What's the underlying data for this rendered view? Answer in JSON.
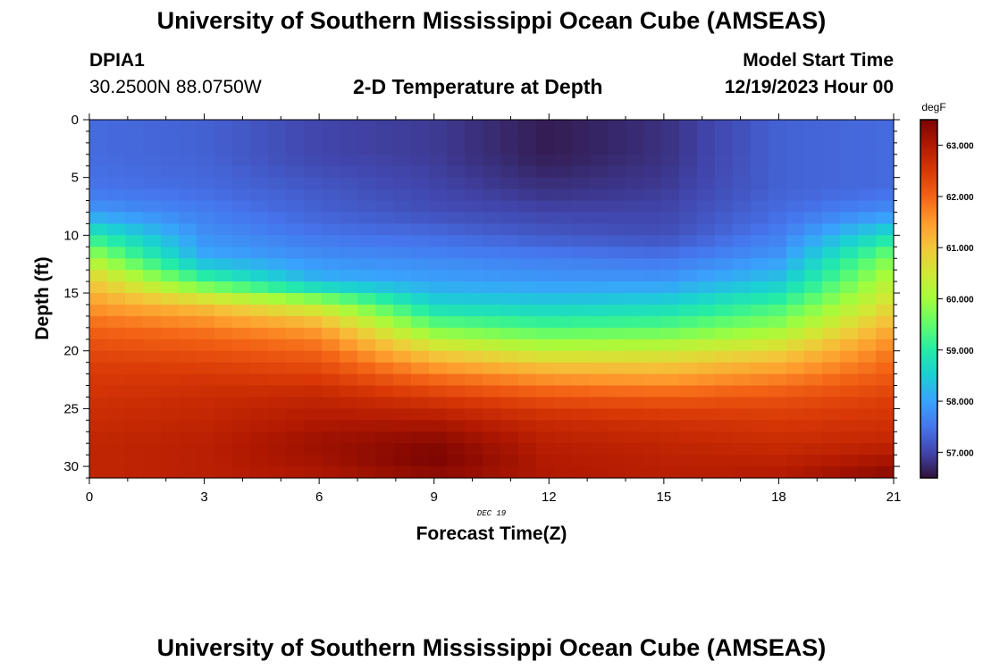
{
  "header": {
    "title": "University of Southern Mississippi Ocean Cube (AMSEAS)",
    "station_id": "DPIA1",
    "coordinates": "30.2500N  88.0750W",
    "plot_title": "2-D Temperature at Depth",
    "model_start_label": "Model Start Time",
    "model_start_value": "12/19/2023 Hour 00"
  },
  "footer": {
    "title": "University of Southern Mississippi Ocean Cube (AMSEAS)"
  },
  "chart_data": {
    "type": "heatmap",
    "title": "2-D Temperature at Depth",
    "xlabel": "Forecast Time(Z)",
    "ylabel": "Depth (ft)",
    "date_label": "DEC 19",
    "xlim": [
      0,
      21
    ],
    "ylim": [
      0,
      31
    ],
    "x_ticks": [
      0,
      3,
      6,
      9,
      12,
      15,
      18,
      21
    ],
    "y_ticks": [
      0,
      5,
      10,
      15,
      20,
      25,
      30
    ],
    "colorbar": {
      "units": "degF",
      "range": [
        56.5,
        63.5
      ],
      "ticks": [
        {
          "value": 57.0,
          "label": "57.000"
        },
        {
          "value": 58.0,
          "label": "58.000"
        },
        {
          "value": 59.0,
          "label": "59.000"
        },
        {
          "value": 60.0,
          "label": "60.000"
        },
        {
          "value": 61.0,
          "label": "61.000"
        },
        {
          "value": 62.0,
          "label": "62.000"
        },
        {
          "value": 63.0,
          "label": "63.000"
        }
      ],
      "colors": [
        "#30123b",
        "#4145ab",
        "#4675ed",
        "#39a2fc",
        "#1bcfd4",
        "#24eca6",
        "#61fc6c",
        "#a4fc3b",
        "#d1e834",
        "#f3c63a",
        "#fe9b2d",
        "#f36315",
        "#d93806",
        "#b11901",
        "#7a0402"
      ]
    },
    "grid": {
      "time_steps": [
        0,
        3,
        6,
        9,
        12,
        15,
        18,
        21
      ],
      "depths_ft": [
        0,
        3,
        6,
        8,
        10,
        12,
        14,
        16,
        18,
        20,
        22,
        24,
        26,
        28,
        30,
        31
      ],
      "values_degF": [
        [
          57.4,
          57.3,
          57.0,
          56.9,
          56.6,
          56.8,
          57.3,
          57.4
        ],
        [
          57.4,
          57.3,
          57.0,
          56.9,
          56.6,
          56.8,
          57.3,
          57.4
        ],
        [
          57.5,
          57.4,
          57.2,
          57.0,
          56.8,
          56.9,
          57.3,
          57.4
        ],
        [
          57.9,
          57.6,
          57.3,
          57.1,
          57.0,
          57.0,
          57.4,
          57.8
        ],
        [
          59.0,
          57.8,
          57.5,
          57.4,
          57.2,
          57.1,
          57.6,
          58.8
        ],
        [
          60.1,
          58.1,
          57.8,
          57.7,
          57.6,
          57.5,
          57.9,
          59.8
        ],
        [
          61.0,
          59.3,
          58.2,
          58.0,
          57.9,
          57.9,
          58.4,
          60.3
        ],
        [
          61.5,
          61.0,
          60.2,
          58.6,
          58.5,
          58.6,
          59.2,
          60.7
        ],
        [
          62.0,
          61.8,
          61.4,
          59.6,
          59.3,
          59.4,
          59.9,
          61.3
        ],
        [
          62.3,
          62.2,
          62.0,
          60.8,
          60.3,
          60.4,
          60.8,
          61.8
        ],
        [
          62.5,
          62.5,
          62.4,
          61.8,
          61.4,
          61.3,
          61.6,
          62.1
        ],
        [
          62.6,
          62.7,
          62.8,
          62.5,
          62.2,
          62.1,
          62.2,
          62.4
        ],
        [
          62.7,
          62.8,
          63.0,
          63.0,
          62.7,
          62.6,
          62.5,
          62.6
        ],
        [
          62.8,
          62.9,
          63.2,
          63.4,
          62.9,
          62.8,
          62.7,
          62.8
        ],
        [
          62.8,
          62.9,
          63.1,
          63.5,
          63.0,
          62.9,
          62.9,
          63.2
        ],
        [
          62.8,
          62.9,
          63.0,
          63.2,
          63.0,
          62.9,
          63.0,
          63.4
        ]
      ]
    }
  }
}
